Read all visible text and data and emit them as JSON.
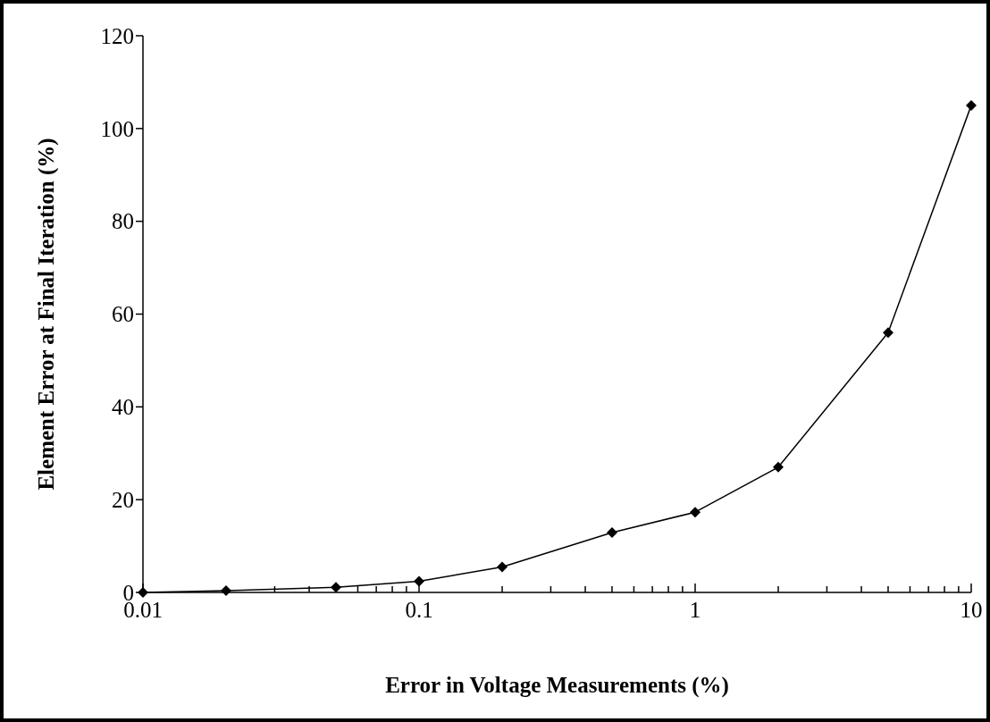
{
  "chart_data": {
    "type": "line",
    "xlabel": "Error in Voltage Measurements (%)",
    "ylabel": "Element Error at Final Iteration (%)",
    "log": "x",
    "marker": "diamond",
    "line_style": "solid",
    "grid": false,
    "xlim": [
      0.01,
      10
    ],
    "ylim": [
      0,
      120
    ],
    "xticks": [
      0.01,
      {
        "value": 0.02,
        "label": null
      },
      {
        "value": 0.03,
        "label": null
      },
      {
        "value": 0.04,
        "label": null
      },
      {
        "value": 0.05,
        "label": null
      },
      {
        "value": 0.06,
        "label": null
      },
      {
        "value": 0.07,
        "label": null
      },
      {
        "value": 0.08,
        "label": null
      },
      {
        "value": 0.09,
        "label": null
      },
      0.1,
      {
        "value": 0.2,
        "label": null
      },
      {
        "value": 0.3,
        "label": null
      },
      {
        "value": 0.4,
        "label": null
      },
      {
        "value": 0.5,
        "label": null
      },
      {
        "value": 0.6,
        "label": null
      },
      {
        "value": 0.7,
        "label": null
      },
      {
        "value": 0.8,
        "label": null
      },
      {
        "value": 0.9,
        "label": null
      },
      1,
      {
        "value": 2,
        "label": null
      },
      {
        "value": 3,
        "label": null
      },
      {
        "value": 4,
        "label": null
      },
      {
        "value": 5,
        "label": null
      },
      {
        "value": 6,
        "label": null
      },
      {
        "value": 7,
        "label": null
      },
      {
        "value": 8,
        "label": null
      },
      {
        "value": 9,
        "label": null
      },
      10
    ],
    "yticks": [
      0,
      20,
      40,
      60,
      80,
      100,
      120
    ],
    "x": [
      0.01,
      0.02,
      0.05,
      0.1,
      0.2,
      0.5,
      1,
      2,
      5,
      10
    ],
    "series": [
      {
        "color": "#000000",
        "values": [
          0,
          0.4,
          1.1,
          2.4,
          5.5,
          12.9,
          17.3,
          27,
          56,
          105
        ]
      }
    ]
  }
}
